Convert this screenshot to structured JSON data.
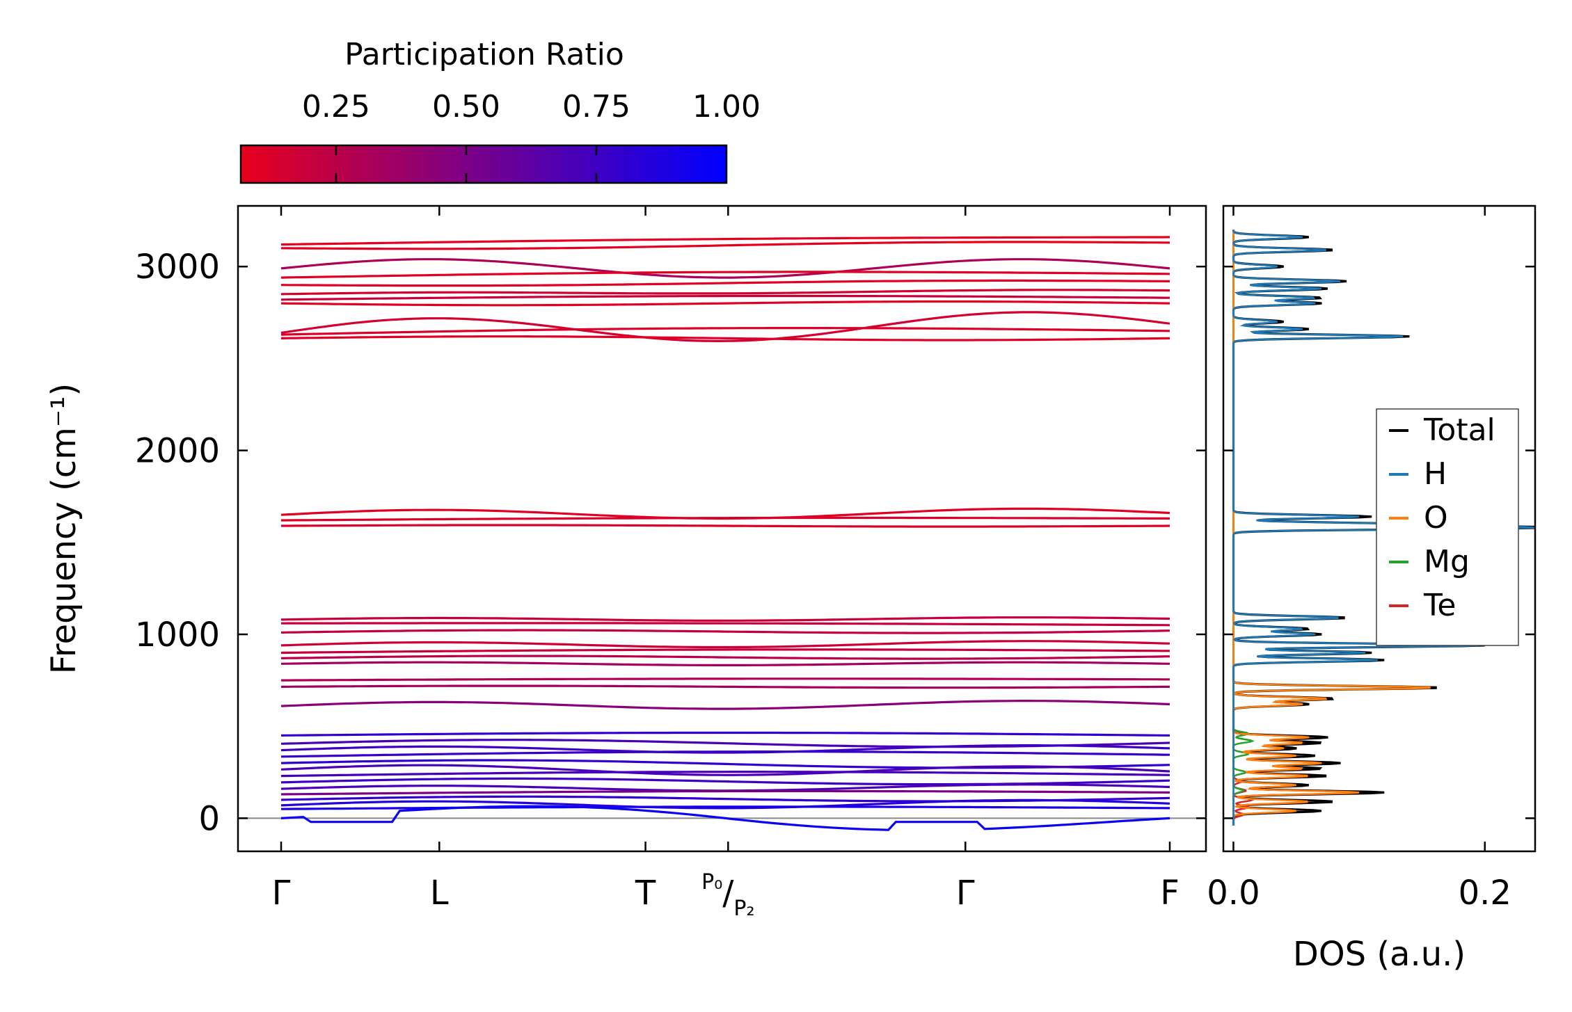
{
  "chart_data": [
    {
      "type": "line",
      "title": "",
      "ylabel": "Frequency (cm⁻¹)",
      "xlabel": "",
      "ylim": [
        -180,
        3330
      ],
      "yticks": [
        0,
        1000,
        2000,
        3000
      ],
      "x_kpoints": [
        {
          "label": "Γ",
          "pos": 0.0
        },
        {
          "label": "L",
          "pos": 0.178
        },
        {
          "label": "T",
          "pos": 0.41
        },
        {
          "label": "P₀/P₂",
          "label_num": "P₀",
          "label_den": "P₂",
          "pos": 0.503
        },
        {
          "label": "Γ",
          "pos": 0.77
        },
        {
          "label": "F",
          "pos": 1.0
        }
      ],
      "zero_line": 0,
      "bands": [
        {
          "f0": 3120,
          "f1": 3160,
          "amp": 10,
          "pr": 0.08
        },
        {
          "f0": 3100,
          "f1": 3130,
          "amp": -10,
          "pr": 0.08
        },
        {
          "f0": 2990,
          "f1": 2990,
          "amp": 50,
          "pr": 0.3
        },
        {
          "f0": 2940,
          "f1": 2960,
          "amp": 20,
          "pr": 0.1
        },
        {
          "f0": 2900,
          "f1": 2920,
          "amp": -8,
          "pr": 0.1
        },
        {
          "f0": 2850,
          "f1": 2870,
          "amp": 6,
          "pr": 0.15
        },
        {
          "f0": 2820,
          "f1": 2830,
          "amp": 15,
          "pr": 0.2
        },
        {
          "f0": 2800,
          "f1": 2800,
          "amp": -10,
          "pr": 0.1
        },
        {
          "f0": 2640,
          "f1": 2690,
          "amp": 70,
          "pr": 0.15
        },
        {
          "f0": 2630,
          "f1": 2650,
          "amp": 25,
          "pr": 0.12
        },
        {
          "f0": 2610,
          "f1": 2610,
          "amp": 10,
          "pr": 0.1
        },
        {
          "f0": 1650,
          "f1": 1660,
          "amp": 25,
          "pr": 0.1
        },
        {
          "f0": 1620,
          "f1": 1630,
          "amp": 8,
          "pr": 0.12
        },
        {
          "f0": 1590,
          "f1": 1590,
          "amp": 4,
          "pr": 0.12
        },
        {
          "f0": 1080,
          "f1": 1085,
          "amp": 8,
          "pr": 0.2
        },
        {
          "f0": 1060,
          "f1": 1050,
          "amp": 5,
          "pr": 0.2
        },
        {
          "f0": 1010,
          "f1": 1020,
          "amp": 10,
          "pr": 0.22
        },
        {
          "f0": 940,
          "f1": 950,
          "amp": 15,
          "pr": 0.18
        },
        {
          "f0": 900,
          "f1": 910,
          "amp": 12,
          "pr": 0.2
        },
        {
          "f0": 870,
          "f1": 880,
          "amp": 10,
          "pr": 0.25
        },
        {
          "f0": 840,
          "f1": 840,
          "amp": 8,
          "pr": 0.35
        },
        {
          "f0": 750,
          "f1": 755,
          "amp": 6,
          "pr": 0.3
        },
        {
          "f0": 715,
          "f1": 715,
          "amp": 5,
          "pr": 0.35
        },
        {
          "f0": 610,
          "f1": 620,
          "amp": 20,
          "pr": 0.45
        },
        {
          "f0": 450,
          "f1": 450,
          "amp": 15,
          "pr": 0.8
        },
        {
          "f0": 405,
          "f1": 410,
          "amp": 20,
          "pr": 0.7
        },
        {
          "f0": 370,
          "f1": 380,
          "amp": 18,
          "pr": 0.75
        },
        {
          "f0": 335,
          "f1": 345,
          "amp": 22,
          "pr": 0.78
        },
        {
          "f0": 300,
          "f1": 290,
          "amp": 18,
          "pr": 0.8
        },
        {
          "f0": 265,
          "f1": 255,
          "amp": 25,
          "pr": 0.7
        },
        {
          "f0": 230,
          "f1": 235,
          "amp": 20,
          "pr": 0.72
        },
        {
          "f0": 195,
          "f1": 205,
          "amp": 18,
          "pr": 0.75
        },
        {
          "f0": 160,
          "f1": 170,
          "amp": 15,
          "pr": 0.7
        },
        {
          "f0": 130,
          "f1": 140,
          "amp": 12,
          "pr": 0.5
        },
        {
          "f0": 100,
          "f1": 110,
          "amp": 15,
          "pr": 0.8
        },
        {
          "f0": 70,
          "f1": 80,
          "amp": 20,
          "pr": 0.85
        },
        {
          "f0": 50,
          "f1": 55,
          "amp": 10,
          "pr": 0.9
        },
        {
          "f0": 0,
          "f1": 0,
          "amp": 85,
          "pr": 0.95
        }
      ]
    },
    {
      "type": "line",
      "title": "",
      "xlabel": "DOS (a.u.)",
      "xlim": [
        -0.008,
        0.24
      ],
      "xticks": [
        0.0,
        0.2
      ],
      "xtick_labels": [
        "0.0",
        "0.2"
      ],
      "ylim": [
        -180,
        3330
      ],
      "legend_position": "right",
      "series": [
        {
          "name": "Total",
          "color": "#000000",
          "peaks": [
            [
              40,
              0.07
            ],
            [
              90,
              0.08
            ],
            [
              140,
              0.12
            ],
            [
              180,
              0.06
            ],
            [
              230,
              0.075
            ],
            [
              270,
              0.07
            ],
            [
              300,
              0.085
            ],
            [
              340,
              0.065
            ],
            [
              380,
              0.05
            ],
            [
              410,
              0.07
            ],
            [
              440,
              0.075
            ],
            [
              620,
              0.06
            ],
            [
              650,
              0.08
            ],
            [
              710,
              0.165
            ],
            [
              860,
              0.12
            ],
            [
              900,
              0.11
            ],
            [
              940,
              0.2
            ],
            [
              1000,
              0.07
            ],
            [
              1030,
              0.06
            ],
            [
              1090,
              0.09
            ],
            [
              1580,
              0.24
            ],
            [
              1600,
              0.12
            ],
            [
              1640,
              0.11
            ],
            [
              2620,
              0.14
            ],
            [
              2660,
              0.06
            ],
            [
              2700,
              0.04
            ],
            [
              2800,
              0.07
            ],
            [
              2830,
              0.07
            ],
            [
              2880,
              0.075
            ],
            [
              2920,
              0.09
            ],
            [
              3000,
              0.04
            ],
            [
              3090,
              0.08
            ],
            [
              3160,
              0.06
            ]
          ]
        },
        {
          "name": "H",
          "color": "#1f77b4",
          "peaks": [
            [
              860,
              0.115
            ],
            [
              900,
              0.105
            ],
            [
              940,
              0.195
            ],
            [
              1000,
              0.065
            ],
            [
              1030,
              0.055
            ],
            [
              1090,
              0.085
            ],
            [
              1580,
              0.23
            ],
            [
              1600,
              0.115
            ],
            [
              1640,
              0.1
            ],
            [
              2620,
              0.135
            ],
            [
              2660,
              0.055
            ],
            [
              2700,
              0.035
            ],
            [
              2800,
              0.065
            ],
            [
              2830,
              0.065
            ],
            [
              2880,
              0.07
            ],
            [
              2920,
              0.085
            ],
            [
              3000,
              0.035
            ],
            [
              3090,
              0.075
            ],
            [
              3160,
              0.055
            ]
          ]
        },
        {
          "name": "O",
          "color": "#ff7f0e",
          "peaks": [
            [
              40,
              0.05
            ],
            [
              90,
              0.06
            ],
            [
              140,
              0.1
            ],
            [
              180,
              0.05
            ],
            [
              230,
              0.06
            ],
            [
              270,
              0.055
            ],
            [
              300,
              0.07
            ],
            [
              340,
              0.05
            ],
            [
              380,
              0.04
            ],
            [
              410,
              0.055
            ],
            [
              440,
              0.06
            ],
            [
              620,
              0.055
            ],
            [
              650,
              0.075
            ],
            [
              710,
              0.16
            ]
          ]
        },
        {
          "name": "Mg",
          "color": "#2ca02c",
          "peaks": [
            [
              150,
              0.008
            ],
            [
              250,
              0.01
            ],
            [
              350,
              0.012
            ],
            [
              420,
              0.015
            ],
            [
              460,
              0.012
            ]
          ]
        },
        {
          "name": "Te",
          "color": "#d62728",
          "peaks": [
            [
              20,
              0.008
            ],
            [
              60,
              0.012
            ],
            [
              100,
              0.015
            ],
            [
              150,
              0.01
            ],
            [
              200,
              0.006
            ]
          ]
        }
      ]
    }
  ],
  "colorbar": {
    "label": "Participation Ratio",
    "ticks": [
      0.25,
      0.5,
      0.75,
      1.0
    ],
    "tick_labels": [
      "0.25",
      "0.50",
      "0.75",
      "1.00"
    ],
    "range": [
      0.067,
      1.0
    ],
    "colors": [
      "#e8001c",
      "#0000ff"
    ]
  }
}
